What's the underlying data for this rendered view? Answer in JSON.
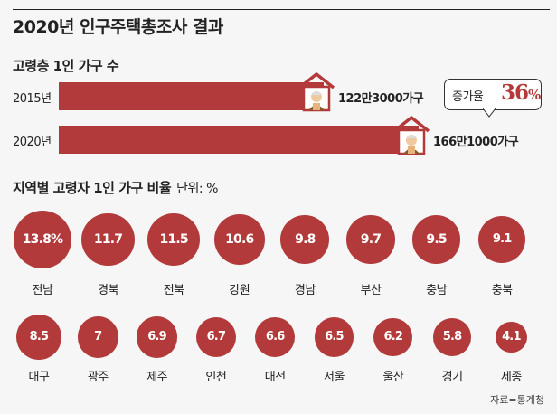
{
  "title": "2020년 인구주택총조사 결과",
  "section1": {
    "title": "고령층 1인 가구 수"
  },
  "section2": {
    "title": "지역별 고령자 1인 가구 비율",
    "unit": "단위: %"
  },
  "growth": {
    "label": "증가율",
    "value": "36",
    "unit": "%"
  },
  "source": "자료=통계청",
  "colors": {
    "accent": "#b23a3a"
  },
  "chart_data": [
    {
      "type": "bar",
      "title": "고령층 1인 가구 수",
      "categories": [
        "2015년",
        "2020년"
      ],
      "values": [
        1223000,
        1661000
      ],
      "value_labels": [
        "122만3000가구",
        "166만1000가구"
      ],
      "icons": [
        "house-with-elderly-icon",
        "house-with-elderly-icon"
      ]
    },
    {
      "type": "scatter",
      "title": "지역별 고령자 1인 가구 비율",
      "unit": "단위: %",
      "categories": [
        "전남",
        "경북",
        "전북",
        "강원",
        "경남",
        "부산",
        "충남",
        "충북",
        "대구",
        "광주",
        "제주",
        "인천",
        "대전",
        "서울",
        "울산",
        "경기",
        "세종"
      ],
      "values": [
        13.8,
        11.7,
        11.5,
        10.6,
        9.8,
        9.7,
        9.5,
        9.1,
        8.5,
        7,
        6.9,
        6.7,
        6.6,
        6.5,
        6.2,
        5.8,
        4.1
      ],
      "value_labels": [
        "13.8%",
        "11.7",
        "11.5",
        "10.6",
        "9.8",
        "9.7",
        "9.5",
        "9.1",
        "8.5",
        "7",
        "6.9",
        "6.7",
        "6.6",
        "6.5",
        "6.2",
        "5.8",
        "4.1"
      ]
    }
  ]
}
